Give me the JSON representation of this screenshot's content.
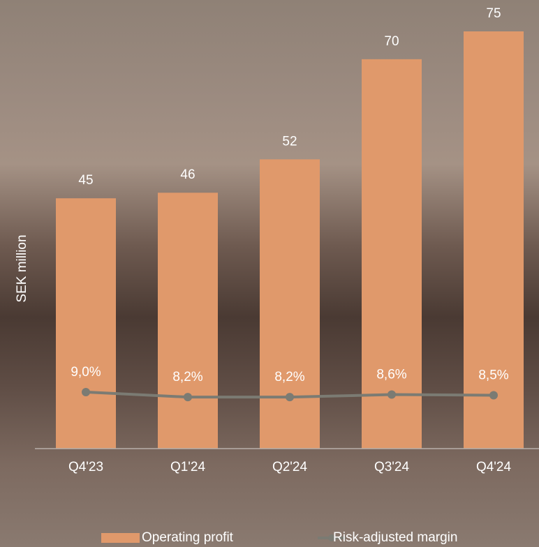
{
  "chart_data": {
    "type": "bar-line",
    "y_label": "SEK million",
    "categories": [
      "Q4'23",
      "Q1'24",
      "Q2'24",
      "Q3'24",
      "Q4'24"
    ],
    "ylim": [
      0,
      75
    ],
    "y2lim": [
      0,
      66.4
    ],
    "series": [
      {
        "name": "Operating profit",
        "type": "bar",
        "color": "#e0996b",
        "values": [
          45,
          46,
          52,
          70,
          75
        ]
      },
      {
        "name": "Risk-adjusted margin",
        "type": "line",
        "axis": "y2",
        "color": "#7b7b73",
        "values": [
          9.0,
          8.2,
          8.2,
          8.6,
          8.5
        ],
        "value_labels": [
          "9,0%",
          "8,2%",
          "8,2%",
          "8,6%",
          "8,5%"
        ]
      }
    ]
  }
}
